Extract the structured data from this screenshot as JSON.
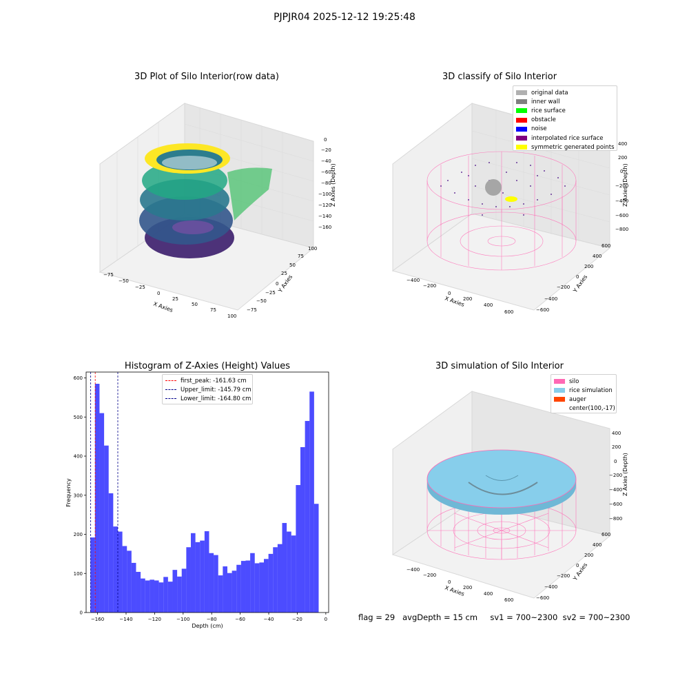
{
  "figure": {
    "suptitle": "PJPJR04 2025-12-12 19:25:48"
  },
  "panels": {
    "raw": {
      "title": "3D Plot of Silo Interior(row data)",
      "xlabel": "X Axies",
      "ylabel": "Y Axies",
      "zlabel": "Z Axies (Depth)",
      "xticks": [
        "−75",
        "−50",
        "−25",
        "0",
        "25",
        "50",
        "75",
        "100"
      ],
      "yticks": [
        "−75",
        "−50",
        "−25",
        "0",
        "25",
        "50",
        "75",
        "100"
      ],
      "zticks": [
        "0",
        "−20",
        "−40",
        "−60",
        "−80",
        "−100",
        "−120",
        "−140",
        "−160"
      ]
    },
    "classify": {
      "title": "3D classify of Silo Interior",
      "xlabel": "X Axies",
      "ylabel": "Y Axies",
      "zlabel": "Z Axies (Depth)",
      "xticks": [
        "−400",
        "−200",
        "0",
        "200",
        "400",
        "600"
      ],
      "yticks": [
        "−600",
        "−400",
        "−200",
        "0",
        "200",
        "400",
        "600"
      ],
      "zticks": [
        "400",
        "200",
        "0",
        "−200",
        "−400",
        "−600",
        "−800"
      ],
      "legend": [
        {
          "label": "original data",
          "color": "#b0b0b0"
        },
        {
          "label": "inner wall",
          "color": "#808080"
        },
        {
          "label": "rice surface",
          "color": "#00ff00"
        },
        {
          "label": "obstacle",
          "color": "#ff0000"
        },
        {
          "label": "noise",
          "color": "#0000ff"
        },
        {
          "label": "interpolated rice surface",
          "color": "#800080"
        },
        {
          "label": "symmetric generated points",
          "color": "#ffff00"
        }
      ]
    },
    "simulation": {
      "title": "3D simulation of Silo Interior",
      "xlabel": "X Axies",
      "ylabel": "Y Axies",
      "zlabel": "Z Axies (Depth)",
      "xticks": [
        "−400",
        "−200",
        "0",
        "200",
        "400",
        "600"
      ],
      "yticks": [
        "−600",
        "−400",
        "−200",
        "0",
        "200",
        "400",
        "600"
      ],
      "zticks": [
        "400",
        "200",
        "0",
        "−200",
        "−400",
        "−600",
        "−800"
      ],
      "legend": [
        {
          "label": "silo",
          "color": "#ff69b4"
        },
        {
          "label": "rice simulation",
          "color": "#87ceeb"
        },
        {
          "label": "auger",
          "color": "#ff4500"
        },
        {
          "label": "center(100,-17)",
          "color": ""
        }
      ]
    }
  },
  "footer": {
    "text": "flag = 29   avgDepth = 15 cm     sv1 = 700~2300  sv2 = 700~2300"
  },
  "chart_data": {
    "type": "bar",
    "title": "Histogram of Z-Axies (Height) Values",
    "xlabel": "Depth (cm)",
    "ylabel": "Frequency",
    "xlim": [
      -168,
      2
    ],
    "ylim": [
      0,
      615
    ],
    "xticks": [
      -160,
      -140,
      -120,
      -100,
      -80,
      -60,
      -40,
      -20,
      0
    ],
    "yticks": [
      0,
      100,
      200,
      300,
      400,
      500,
      600
    ],
    "bar_color": "#0000ff",
    "bins_start": -165.0,
    "bin_width": 3.2,
    "values": [
      192,
      585,
      510,
      427,
      305,
      220,
      207,
      170,
      158,
      127,
      104,
      87,
      82,
      84,
      82,
      77,
      91,
      79,
      109,
      92,
      112,
      167,
      203,
      180,
      184,
      208,
      152,
      147,
      95,
      118,
      101,
      107,
      122,
      132,
      133,
      152,
      126,
      128,
      137,
      150,
      167,
      175,
      229,
      207,
      197,
      326,
      423,
      490,
      565,
      278
    ],
    "vlines": [
      {
        "label": "first_peak: -161.63 cm",
        "x": -161.63,
        "color": "#ff0000"
      },
      {
        "label": "Upper_limit: -145.79 cm",
        "x": -145.79,
        "color": "#00008b"
      },
      {
        "label": "Lower_limit: -164.80 cm",
        "x": -164.8,
        "color": "#00008b"
      }
    ]
  }
}
